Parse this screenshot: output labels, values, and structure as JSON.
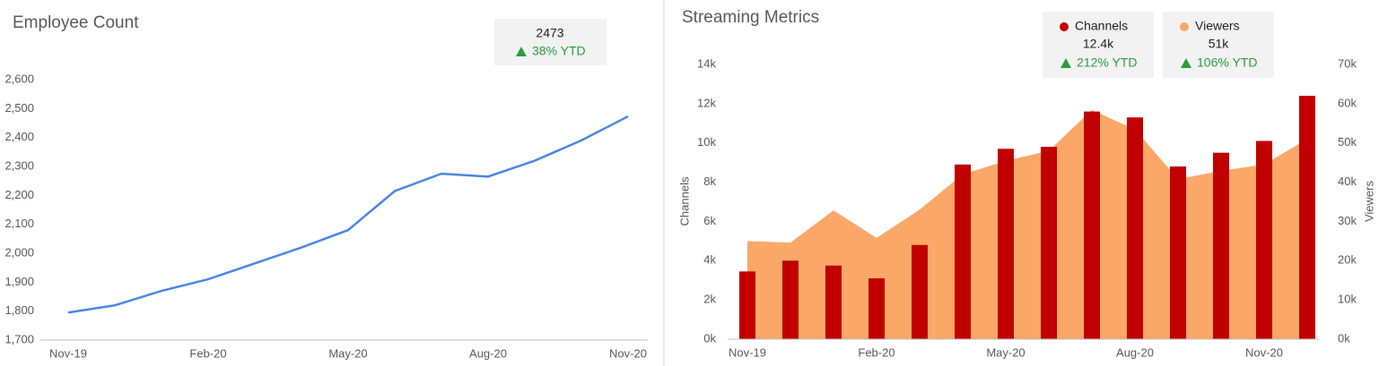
{
  "chart_data": [
    {
      "type": "line",
      "title": "Employee Count",
      "categories": [
        "Nov-19",
        null,
        null,
        "Feb-20",
        null,
        null,
        "May-20",
        null,
        null,
        "Aug-20",
        null,
        null,
        "Nov-20"
      ],
      "values": [
        1795,
        1820,
        1870,
        1910,
        1965,
        2020,
        2080,
        2215,
        2275,
        2265,
        2320,
        2390,
        2473
      ],
      "color": "#4a86e8",
      "ylim": [
        1700,
        2600
      ],
      "yticks": [
        {
          "value": 1700,
          "label": "1,700"
        },
        {
          "value": 1800,
          "label": "1,800"
        },
        {
          "value": 1900,
          "label": "1,900"
        },
        {
          "value": 2000,
          "label": "2,000"
        },
        {
          "value": 2100,
          "label": "2,100"
        },
        {
          "value": 2200,
          "label": "2,200"
        },
        {
          "value": 2300,
          "label": "2,300"
        },
        {
          "value": 2400,
          "label": "2,400"
        },
        {
          "value": 2500,
          "label": "2,500"
        },
        {
          "value": 2600,
          "label": "2,600"
        }
      ],
      "kpi": 2473,
      "change": "38% YTD"
    },
    {
      "type": "combo",
      "title": "Streaming Metrics",
      "categories": [
        "Nov-19",
        null,
        null,
        "Feb-20",
        null,
        null,
        "May-20",
        null,
        null,
        "Aug-20",
        null,
        null,
        "Nov-20",
        null
      ],
      "series": [
        {
          "name": "Channels",
          "type": "bar",
          "color": "#c00000",
          "values": [
            3450,
            4000,
            3750,
            3100,
            4800,
            8900,
            9700,
            9800,
            11600,
            11300,
            8800,
            9500,
            10100,
            12400
          ],
          "kpi": "12.4k",
          "change": "212% YTD"
        },
        {
          "name": "Viewers",
          "type": "area",
          "color": "#fba768",
          "axis": "y2",
          "values": [
            25000,
            24600,
            32800,
            25800,
            33000,
            42000,
            45400,
            48000,
            58400,
            53400,
            40800,
            42900,
            44500,
            51000
          ],
          "kpi": "51k",
          "change": "106% YTD"
        }
      ],
      "ylabel": "Channels",
      "y2label": "Viewers",
      "ylim": [
        0,
        14000
      ],
      "yticks": [
        {
          "value": 0,
          "label": "0k"
        },
        {
          "value": 2000,
          "label": "2k"
        },
        {
          "value": 4000,
          "label": "4k"
        },
        {
          "value": 6000,
          "label": "6k"
        },
        {
          "value": 8000,
          "label": "8k"
        },
        {
          "value": 10000,
          "label": "10k"
        },
        {
          "value": 12000,
          "label": "12k"
        },
        {
          "value": 14000,
          "label": "14k"
        }
      ],
      "y2lim": [
        0,
        70000
      ],
      "y2ticks": [
        {
          "value": 0,
          "label": "0k"
        },
        {
          "value": 10000,
          "label": "10k"
        },
        {
          "value": 20000,
          "label": "20k"
        },
        {
          "value": 30000,
          "label": "30k"
        },
        {
          "value": 40000,
          "label": "40k"
        },
        {
          "value": 50000,
          "label": "50k"
        },
        {
          "value": 60000,
          "label": "60k"
        },
        {
          "value": 70000,
          "label": "70k"
        }
      ]
    }
  ]
}
